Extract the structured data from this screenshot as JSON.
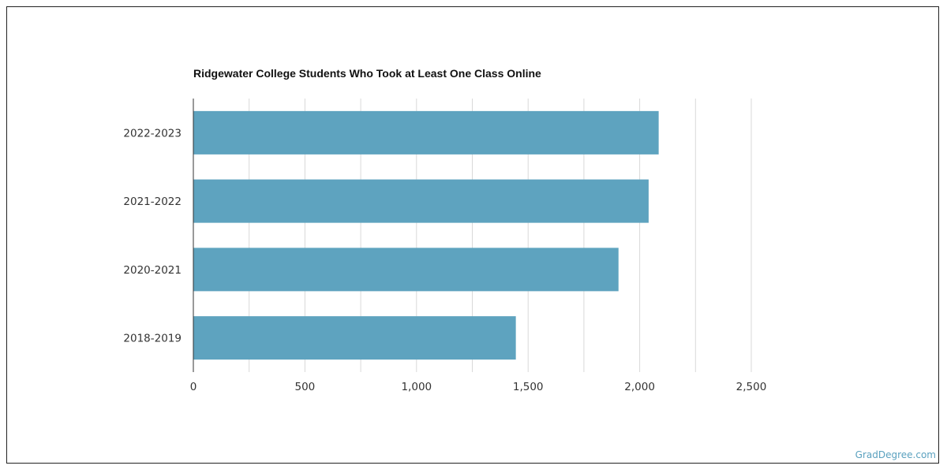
{
  "colors": {
    "bar": "#5ea3bf",
    "grid": "#d9d9d9",
    "axis": "#333333",
    "watermark": "#5aa1bf"
  },
  "chart_data": {
    "type": "bar",
    "orientation": "horizontal",
    "title": "Ridgewater College Students Who Took at Least One Class Online",
    "categories": [
      "2022-2023",
      "2021-2022",
      "2020-2021",
      "2018-2019"
    ],
    "values": [
      2085,
      2040,
      1905,
      1445
    ],
    "xlim": [
      0,
      3000
    ],
    "xticks": [
      0,
      500,
      1000,
      1500,
      2000,
      2500
    ],
    "xtick_labels": [
      "0",
      "500",
      "1,000",
      "1,500",
      "2,000",
      "2,500"
    ],
    "xlabel": "",
    "ylabel": "",
    "grid": true
  },
  "footer": {
    "source": "GradDegree.com"
  }
}
